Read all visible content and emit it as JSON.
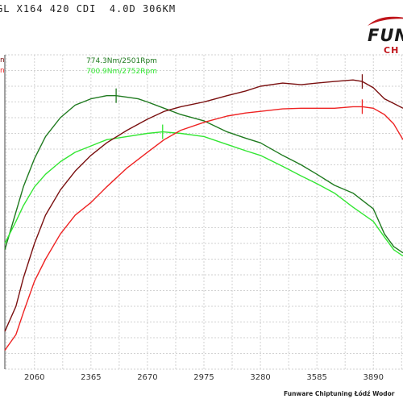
{
  "title": "GL X164 420 CDI  4.0D 306KM",
  "brand": {
    "main": "FUN",
    "sub": "CH"
  },
  "footer": "Funware Chiptuning Łódź Wodor",
  "chart_data": {
    "type": "line",
    "x_ticks": [
      2060,
      2365,
      2670,
      2975,
      3280,
      3585,
      3890
    ],
    "xlim": [
      1900,
      4050
    ],
    "ylim": [
      0,
      100
    ],
    "grid": true,
    "series": [
      {
        "id": "torque_tuned",
        "color": "#1f7a1f",
        "x": [
          1900,
          1960,
          2000,
          2060,
          2120,
          2200,
          2280,
          2365,
          2450,
          2501,
          2560,
          2620,
          2670,
          2760,
          2850,
          2975,
          3100,
          3200,
          3280,
          3400,
          3500,
          3585,
          3680,
          3780,
          3890,
          3950,
          4000,
          4050
        ],
        "y": [
          38,
          50,
          58,
          67,
          74,
          80,
          84,
          86,
          87,
          87,
          86.5,
          86,
          85,
          83,
          81,
          79,
          75.5,
          73.5,
          72,
          68,
          65,
          62,
          58.5,
          56,
          51,
          43,
          39,
          37
        ]
      },
      {
        "id": "torque_stock",
        "color": "#33e633",
        "x": [
          1900,
          1960,
          2000,
          2060,
          2120,
          2200,
          2280,
          2365,
          2450,
          2560,
          2670,
          2752,
          2850,
          2975,
          3100,
          3200,
          3280,
          3400,
          3500,
          3585,
          3680,
          3780,
          3890,
          3950,
          4000,
          4050
        ],
        "y": [
          40,
          47,
          52,
          58,
          62,
          66,
          69,
          71,
          73,
          74,
          75,
          75.5,
          75,
          74,
          71.5,
          69.5,
          68,
          64.5,
          61.5,
          59,
          56,
          51.5,
          47,
          42,
          38,
          36
        ]
      },
      {
        "id": "power_tuned",
        "color": "#7a1010",
        "x": [
          1900,
          1960,
          2000,
          2060,
          2120,
          2200,
          2280,
          2365,
          2450,
          2560,
          2670,
          2760,
          2850,
          2975,
          3100,
          3200,
          3280,
          3400,
          3500,
          3585,
          3680,
          3780,
          3830,
          3890,
          3950,
          4000,
          4050
        ],
        "y": [
          12,
          20,
          29,
          40,
          49,
          57,
          63,
          68,
          72,
          76,
          79.5,
          82,
          83.5,
          85,
          87,
          88.5,
          90,
          91,
          90.5,
          91,
          91.5,
          92,
          91.5,
          89.5,
          86,
          84.5,
          83
        ]
      },
      {
        "id": "power_stock",
        "color": "#ee2222",
        "x": [
          1900,
          1960,
          2000,
          2060,
          2120,
          2200,
          2280,
          2365,
          2450,
          2560,
          2670,
          2760,
          2850,
          2975,
          3100,
          3200,
          3280,
          3400,
          3500,
          3585,
          3680,
          3780,
          3830,
          3890,
          3950,
          4000,
          4050
        ],
        "y": [
          6,
          11,
          18,
          28,
          35,
          43,
          49,
          53,
          58,
          64,
          69,
          73,
          76,
          78.5,
          80.5,
          81.5,
          82,
          82.8,
          83,
          83,
          83,
          83.5,
          83.5,
          83,
          81,
          78,
          73
        ]
      }
    ],
    "markers": [
      {
        "series": "torque_tuned",
        "x": 2501,
        "y": 87
      },
      {
        "series": "torque_stock",
        "x": 2752,
        "y": 75.5
      },
      {
        "series": "power_tuned",
        "x": 3830,
        "y": 91.5
      },
      {
        "series": "power_stock",
        "x": 3830,
        "y": 83.5
      }
    ],
    "annotations": [
      {
        "text": "774.3Nm/2501Rpm",
        "color": "#1f7a1f"
      },
      {
        "text": "700.9Nm/2752Rpm",
        "color": "#33e633"
      }
    ],
    "left_labels": [
      {
        "text": "n",
        "color": "#7a1010"
      },
      {
        "text": "n",
        "color": "#ee2222"
      }
    ]
  }
}
